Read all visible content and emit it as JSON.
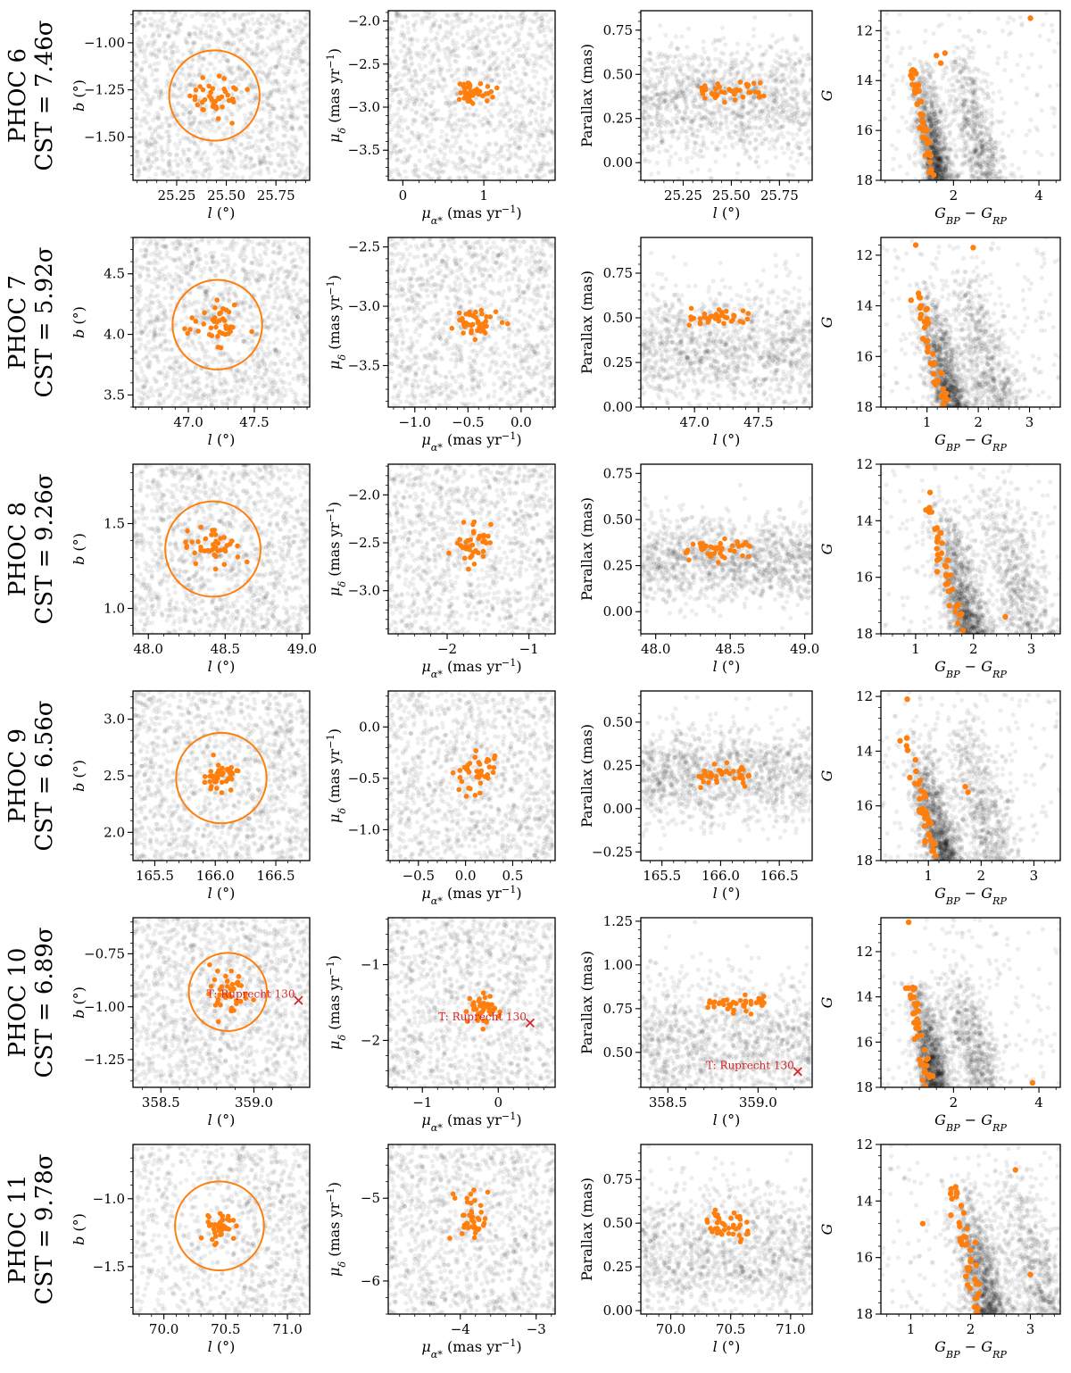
{
  "figure": {
    "description_rows": 6,
    "panels_per_row": [
      "sky position",
      "proper motion",
      "parallax",
      "colour-magnitude diagram"
    ]
  },
  "colors": {
    "background_stars": "#000000",
    "members": "#ff7f0e",
    "known_cluster": "#d62728"
  },
  "axis_labels": {
    "l": "l (°)",
    "b": "b (°)",
    "pmra": "μα* (mas yr⁻¹)",
    "pmdec": "μδ (mas yr⁻¹)",
    "parallax": "Parallax (mas)",
    "G": "G",
    "color": "GBP − GRP"
  },
  "chart_data": [
    {
      "name": "PHOC 6",
      "cst": "CST = 7.46σ",
      "seed": 11,
      "sky": {
        "type": "scatter",
        "xlim": [
          25.03,
          25.92
        ],
        "ylim": [
          -1.73,
          -0.83
        ],
        "xticks": [
          "25.25",
          "25.50",
          "25.75"
        ],
        "yticks": [
          "-1.00",
          "-1.25",
          "-1.50"
        ],
        "center": [
          25.44,
          -1.28
        ],
        "circle_radius_deg": 0.24,
        "member_spread": [
          0.07,
          0.05
        ]
      },
      "pm": {
        "type": "scatter",
        "xlim": [
          -0.18,
          1.88
        ],
        "ylim": [
          -3.85,
          -1.88
        ],
        "xticks": [
          "0",
          "1"
        ],
        "yticks": [
          "-2.0",
          "-2.5",
          "-3.0",
          "-3.5"
        ],
        "center": [
          0.84,
          -2.83
        ],
        "member_spread": [
          0.12,
          0.08
        ]
      },
      "plx": {
        "type": "scatter",
        "xlim": [
          25.03,
          25.92
        ],
        "ylim": [
          -0.1,
          0.86
        ],
        "xticks": [
          "25.25",
          "25.50",
          "25.75"
        ],
        "yticks": [
          "0.75",
          "0.50",
          "0.25",
          "0.00"
        ],
        "member_x": [
          25.32,
          25.68
        ],
        "member_y": 0.41,
        "member_ysd": 0.03,
        "field_y": 0.35,
        "field_ysd": 0.17
      },
      "cmd": {
        "type": "scatter",
        "xlim": [
          0.3,
          4.5
        ],
        "ylim": [
          18,
          11.2
        ],
        "xticks": [
          "2",
          "4"
        ],
        "yticks": [
          "12",
          "14",
          "16",
          "18"
        ],
        "turnoff_color": 1.05,
        "ms_slope": 0.1,
        "rgb_color": 2.3,
        "members_extra": [
          [
            3.8,
            11.5
          ],
          [
            1.6,
            13.0
          ],
          [
            1.8,
            12.9
          ],
          [
            1.7,
            13.3
          ]
        ]
      },
      "known": null
    },
    {
      "name": "PHOC 7",
      "cst": "CST = 5.92σ",
      "seed": 23,
      "sky": {
        "type": "scatter",
        "xlim": [
          46.58,
          47.92
        ],
        "ylim": [
          3.4,
          4.8
        ],
        "xticks": [
          "47.0",
          "47.5"
        ],
        "yticks": [
          "4.5",
          "4.0",
          "3.5"
        ],
        "center": [
          47.22,
          4.08
        ],
        "circle_radius_deg": 0.37,
        "member_spread": [
          0.1,
          0.08
        ]
      },
      "pm": {
        "type": "scatter",
        "xlim": [
          -1.25,
          0.32
        ],
        "ylim": [
          -3.85,
          -2.42
        ],
        "xticks": [
          "-1.0",
          "-0.5",
          "0.0"
        ],
        "yticks": [
          "-2.5",
          "-3.0",
          "-3.5"
        ],
        "center": [
          -0.41,
          -3.15
        ],
        "member_spread": [
          0.09,
          0.06
        ]
      },
      "plx": {
        "type": "scatter",
        "xlim": [
          46.58,
          47.92
        ],
        "ylim": [
          0.0,
          0.95
        ],
        "xticks": [
          "47.0",
          "47.5"
        ],
        "yticks": [
          "0.75",
          "0.50",
          "0.25",
          "0.00"
        ],
        "member_x": [
          46.95,
          47.42
        ],
        "member_y": 0.5,
        "member_ysd": 0.02,
        "field_y": 0.32,
        "field_ysd": 0.17
      },
      "cmd": {
        "type": "scatter",
        "xlim": [
          0.1,
          3.6
        ],
        "ylim": [
          18,
          11.3
        ],
        "xticks": [
          "1",
          "2",
          "3"
        ],
        "yticks": [
          "12",
          "14",
          "16",
          "18"
        ],
        "turnoff_color": 0.8,
        "ms_slope": 0.12,
        "rgb_color": 1.9,
        "members_extra": [
          [
            1.9,
            11.7
          ],
          [
            0.78,
            11.6
          ]
        ]
      },
      "known": null
    },
    {
      "name": "PHOC 8",
      "cst": "CST = 9.26σ",
      "seed": 37,
      "sky": {
        "type": "scatter",
        "xlim": [
          47.9,
          49.05
        ],
        "ylim": [
          0.85,
          1.85
        ],
        "xticks": [
          "48.0",
          "48.5",
          "49.0"
        ],
        "yticks": [
          "1.5",
          "1.0"
        ],
        "center": [
          48.42,
          1.35
        ],
        "circle_radius_deg": 0.31,
        "member_spread": [
          0.09,
          0.07
        ]
      },
      "pm": {
        "type": "scatter",
        "xlim": [
          -2.72,
          -0.68
        ],
        "ylim": [
          -3.45,
          -1.68
        ],
        "xticks": [
          "-2",
          "-1"
        ],
        "yticks": [
          "-2.0",
          "-2.5",
          "-3.0"
        ],
        "center": [
          -1.68,
          -2.48
        ],
        "member_spread": [
          0.1,
          0.1
        ]
      },
      "plx": {
        "type": "scatter",
        "xlim": [
          47.9,
          49.05
        ],
        "ylim": [
          -0.12,
          0.8
        ],
        "xticks": [
          "48.0",
          "48.5",
          "49.0"
        ],
        "yticks": [
          "0.75",
          "0.50",
          "0.25",
          "0.00"
        ],
        "member_x": [
          48.2,
          48.65
        ],
        "member_y": 0.34,
        "member_ysd": 0.03,
        "field_y": 0.28,
        "field_ysd": 0.12
      },
      "cmd": {
        "type": "scatter",
        "xlim": [
          0.4,
          3.5
        ],
        "ylim": [
          18,
          12
        ],
        "xticks": [
          "1",
          "2",
          "3"
        ],
        "yticks": [
          "12",
          "14",
          "16",
          "18"
        ],
        "turnoff_color": 1.25,
        "ms_slope": 0.12,
        "rgb_color": 2.5,
        "members_extra": [
          [
            1.25,
            13.0
          ],
          [
            2.55,
            17.4
          ]
        ]
      },
      "known": null
    },
    {
      "name": "PHOC 9",
      "cst": "CST = 6.56σ",
      "seed": 41,
      "sky": {
        "type": "scatter",
        "xlim": [
          165.32,
          166.78
        ],
        "ylim": [
          1.75,
          3.25
        ],
        "xticks": [
          "165.5",
          "166.0",
          "166.5"
        ],
        "yticks": [
          "3.0",
          "2.5",
          "2.0"
        ],
        "center": [
          166.05,
          2.48
        ],
        "circle_radius_deg": 0.4,
        "member_spread": [
          0.08,
          0.06
        ]
      },
      "pm": {
        "type": "scatter",
        "xlim": [
          -0.82,
          0.95
        ],
        "ylim": [
          -1.3,
          0.35
        ],
        "xticks": [
          "-0.5",
          "0.0",
          "0.5"
        ],
        "yticks": [
          "0.0",
          "-0.5",
          "-1.0"
        ],
        "center": [
          0.12,
          -0.42
        ],
        "member_spread": [
          0.1,
          0.1
        ]
      },
      "plx": {
        "type": "scatter",
        "xlim": [
          165.32,
          166.78
        ],
        "ylim": [
          -0.3,
          0.68
        ],
        "xticks": [
          "165.5",
          "166.0",
          "166.5"
        ],
        "yticks": [
          "0.50",
          "0.25",
          "0.00",
          "-0.25"
        ],
        "member_x": [
          165.8,
          166.25
        ],
        "member_y": 0.2,
        "member_ysd": 0.03,
        "field_y": 0.2,
        "field_ysd": 0.14
      },
      "cmd": {
        "type": "scatter",
        "xlim": [
          0.1,
          3.5
        ],
        "ylim": [
          18,
          11.8
        ],
        "xticks": [
          "1",
          "2",
          "3"
        ],
        "yticks": [
          "12",
          "14",
          "16",
          "18"
        ],
        "turnoff_color": 0.6,
        "ms_slope": 0.12,
        "rgb_color": 1.8,
        "members_extra": [
          [
            0.6,
            12.1
          ],
          [
            1.7,
            15.3
          ],
          [
            1.75,
            15.5
          ]
        ]
      },
      "known": null
    },
    {
      "name": "PHOC 10",
      "cst": "CST = 6.89σ",
      "seed": 53,
      "sky": {
        "type": "scatter",
        "xlim": [
          358.35,
          359.3
        ],
        "ylim": [
          -1.38,
          -0.58
        ],
        "xticks": [
          "358.5",
          "359.0"
        ],
        "yticks": [
          "-0.75",
          "-1.00",
          "-1.25"
        ],
        "center": [
          358.86,
          -0.93
        ],
        "circle_radius_deg": 0.21,
        "member_spread": [
          0.06,
          0.05
        ]
      },
      "pm": {
        "type": "scatter",
        "xlim": [
          -1.45,
          0.75
        ],
        "ylim": [
          -2.62,
          -0.38
        ],
        "xticks": [
          "-1",
          "0"
        ],
        "yticks": [
          "-1",
          "-2"
        ],
        "center": [
          -0.22,
          -1.58
        ],
        "member_spread": [
          0.1,
          0.12
        ]
      },
      "plx": {
        "type": "scatter",
        "xlim": [
          358.35,
          359.3
        ],
        "ylim": [
          0.3,
          1.27
        ],
        "xticks": [
          "358.5",
          "359.0"
        ],
        "yticks": [
          "1.25",
          "1.00",
          "0.75",
          "0.50"
        ],
        "member_x": [
          358.72,
          359.05
        ],
        "member_y": 0.78,
        "member_ysd": 0.02,
        "field_y": 0.55,
        "field_ysd": 0.2
      },
      "cmd": {
        "type": "scatter",
        "xlim": [
          0.3,
          4.5
        ],
        "ylim": [
          18,
          10.5
        ],
        "xticks": [
          "2",
          "4"
        ],
        "yticks": [
          "12",
          "14",
          "16",
          "18"
        ],
        "turnoff_color": 1.0,
        "ms_slope": 0.1,
        "rgb_color": 2.2,
        "members_extra": [
          [
            0.95,
            10.7
          ],
          [
            3.85,
            17.8
          ]
        ]
      },
      "known": {
        "label": "T: Ruprecht 130",
        "sky": [
          359.24,
          -0.97
        ],
        "pm": [
          0.42,
          -1.77
        ],
        "plx": [
          359.22,
          0.39
        ]
      }
    },
    {
      "name": "PHOC 11",
      "cst": "CST = 9.78σ",
      "seed": 67,
      "sky": {
        "type": "scatter",
        "xlim": [
          69.75,
          71.18
        ],
        "ylim": [
          -1.85,
          -0.6
        ],
        "xticks": [
          "70.0",
          "70.5",
          "71.0"
        ],
        "yticks": [
          "-1.0",
          "-1.5"
        ],
        "center": [
          70.45,
          -1.2
        ],
        "circle_radius_deg": 0.36,
        "member_spread": [
          0.05,
          0.07
        ]
      },
      "pm": {
        "type": "scatter",
        "xlim": [
          -4.95,
          -2.75
        ],
        "ylim": [
          -6.4,
          -4.35
        ],
        "xticks": [
          "-4",
          "-3"
        ],
        "yticks": [
          "-5",
          "-6"
        ],
        "center": [
          -3.85,
          -5.25
        ],
        "member_spread": [
          0.12,
          0.16
        ]
      },
      "plx": {
        "type": "scatter",
        "xlim": [
          69.75,
          71.18
        ],
        "ylim": [
          -0.02,
          0.95
        ],
        "xticks": [
          "70.0",
          "70.5",
          "71.0"
        ],
        "yticks": [
          "0.75",
          "0.50",
          "0.25",
          "0.00"
        ],
        "member_x": [
          70.3,
          70.65
        ],
        "member_y": 0.48,
        "member_ysd": 0.04,
        "field_y": 0.32,
        "field_ysd": 0.2
      },
      "cmd": {
        "type": "scatter",
        "xlim": [
          0.5,
          3.5
        ],
        "ylim": [
          18,
          12
        ],
        "xticks": [
          "1",
          "2",
          "3"
        ],
        "yticks": [
          "12",
          "14",
          "16",
          "18"
        ],
        "turnoff_color": 1.7,
        "ms_slope": 0.1,
        "rgb_color": 2.8,
        "members_extra": [
          [
            2.75,
            12.9
          ],
          [
            1.75,
            13.5
          ],
          [
            1.2,
            14.8
          ],
          [
            3.0,
            16.6
          ]
        ]
      },
      "known": null
    }
  ]
}
